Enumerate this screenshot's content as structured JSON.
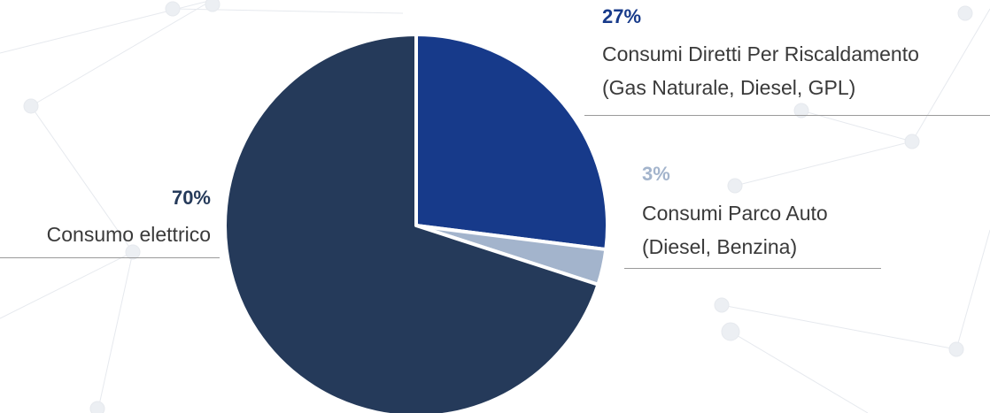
{
  "chart_data": {
    "type": "pie",
    "categories": [
      "Consumi Diretti Per Riscaldamento\n(Gas Naturale, Diesel, GPL)",
      "Consumi Parco Auto\n(Diesel, Benzina)",
      "Consumo elettrico"
    ],
    "values": [
      27,
      3,
      70
    ],
    "value_labels": [
      "27%",
      "3%",
      "70%"
    ],
    "colors": [
      "#173a8a",
      "#a3b4cc",
      "#253a5a"
    ]
  }
}
